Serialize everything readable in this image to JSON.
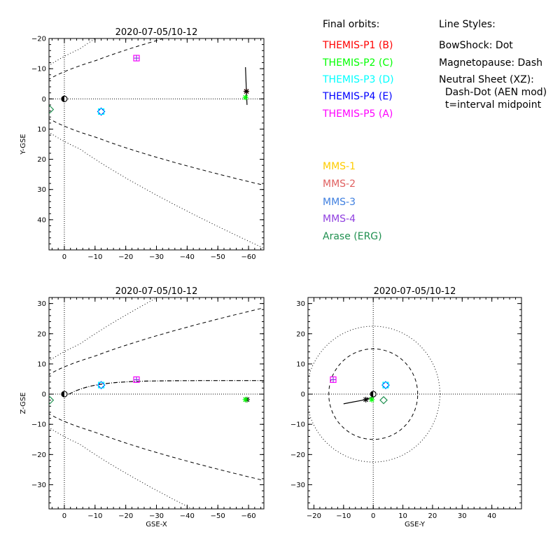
{
  "legend": {
    "orbits_title": "Final orbits:",
    "orbit_items": [
      {
        "label": "THEMIS-P1 (B)",
        "color": "#ff0000"
      },
      {
        "label": "THEMIS-P2 (C)",
        "color": "#00ff00"
      },
      {
        "label": "THEMIS-P3 (D)",
        "color": "#00ffff"
      },
      {
        "label": "THEMIS-P4 (E)",
        "color": "#0000ff"
      },
      {
        "label": "THEMIS-P5 (A)",
        "color": "#ff00ff"
      }
    ],
    "mission_items": [
      {
        "label": "MMS-1",
        "color": "#ffcc00"
      },
      {
        "label": "MMS-2",
        "color": "#e06060"
      },
      {
        "label": "MMS-3",
        "color": "#4080e0"
      },
      {
        "label": "MMS-4",
        "color": "#9040e0"
      },
      {
        "label": "Arase (ERG)",
        "color": "#209050"
      }
    ],
    "styles_title": "Line Styles:",
    "style_lines": [
      "BowShock: Dot",
      "Magnetopause: Dash",
      "Neutral Sheet (XZ):",
      "  Dash-Dot (AEN mod)",
      "  t=interval midpoint"
    ]
  },
  "chart_data": [
    {
      "type": "scatter",
      "title": "2020-07-05/10-12",
      "xlabel": "",
      "ylabel": "Y-GSE",
      "xlim": [
        5,
        -65
      ],
      "ylim": [
        -20,
        50
      ],
      "x_reversed": true,
      "y_reversed": true,
      "xticks": [
        0,
        -10,
        -20,
        -30,
        -40,
        -50,
        -60
      ],
      "yticks": [
        -20,
        -10,
        0,
        10,
        20,
        30,
        40
      ],
      "points": [
        {
          "x": 0,
          "y": 0,
          "marker": "earth"
        },
        {
          "x": -12,
          "y": 4.2,
          "color": "#0000ff",
          "marker": "diamond"
        },
        {
          "x": -12,
          "y": 4.2,
          "color": "#00ffff",
          "marker": "square"
        },
        {
          "x": -23.5,
          "y": -13.5,
          "color": "#ff00ff",
          "marker": "square"
        },
        {
          "x": -23.5,
          "y": -13.5,
          "color": "#9040e0",
          "marker": "cross"
        },
        {
          "x": -59.3,
          "y": -2.5,
          "color": "#ff0000",
          "marker": "star"
        },
        {
          "x": -59.3,
          "y": -2.5,
          "color": "#000000",
          "marker": "star"
        },
        {
          "x": -59,
          "y": -0.5,
          "color": "#00ff00",
          "marker": "star"
        },
        {
          "x": 4.7,
          "y": 3.5,
          "color": "#209050",
          "marker": "diamond"
        }
      ]
    },
    {
      "type": "scatter",
      "title": "2020-07-05/10-12",
      "xlabel": "GSE-X",
      "ylabel": "Z-GSE",
      "xlim": [
        5,
        -65
      ],
      "ylim": [
        -38,
        32
      ],
      "x_reversed": true,
      "xticks": [
        0,
        -10,
        -20,
        -30,
        -40,
        -50,
        -60
      ],
      "yticks": [
        -30,
        -20,
        -10,
        0,
        10,
        20,
        30
      ],
      "points": [
        {
          "x": 0,
          "y": 0,
          "marker": "earth"
        },
        {
          "x": -12,
          "y": 3,
          "color": "#0000ff",
          "marker": "diamond"
        },
        {
          "x": -12,
          "y": 3,
          "color": "#00ffff",
          "marker": "square"
        },
        {
          "x": -23.5,
          "y": 4.8,
          "color": "#ff00ff",
          "marker": "square"
        },
        {
          "x": -23.5,
          "y": 4.8,
          "color": "#9040e0",
          "marker": "cross"
        },
        {
          "x": -59.5,
          "y": -1.8,
          "color": "#000000",
          "marker": "star"
        },
        {
          "x": -59,
          "y": -1.8,
          "color": "#00ff00",
          "marker": "star"
        },
        {
          "x": 4.7,
          "y": -2,
          "color": "#209050",
          "marker": "diamond"
        }
      ]
    },
    {
      "type": "scatter",
      "title": "2020-07-05/10-12",
      "xlabel": "GSE-Y",
      "ylabel": "",
      "xlim": [
        -22,
        50
      ],
      "ylim": [
        -38,
        32
      ],
      "xticks": [
        -20,
        -10,
        0,
        10,
        20,
        30,
        40
      ],
      "yticks": [
        -30,
        -20,
        -10,
        0,
        10,
        20,
        30
      ],
      "points": [
        {
          "x": 0,
          "y": 0,
          "marker": "earth"
        },
        {
          "x": 4.2,
          "y": 3,
          "color": "#0000ff",
          "marker": "diamond"
        },
        {
          "x": 4.2,
          "y": 3,
          "color": "#00ffff",
          "marker": "square"
        },
        {
          "x": -13.5,
          "y": 4.8,
          "color": "#ff00ff",
          "marker": "square"
        },
        {
          "x": -13.5,
          "y": 4.8,
          "color": "#9040e0",
          "marker": "cross"
        },
        {
          "x": -2.5,
          "y": -1.8,
          "color": "#000000",
          "marker": "star"
        },
        {
          "x": -0.5,
          "y": -1.8,
          "color": "#00ff00",
          "marker": "star"
        },
        {
          "x": 3.5,
          "y": -2,
          "color": "#209050",
          "marker": "diamond"
        }
      ]
    }
  ]
}
